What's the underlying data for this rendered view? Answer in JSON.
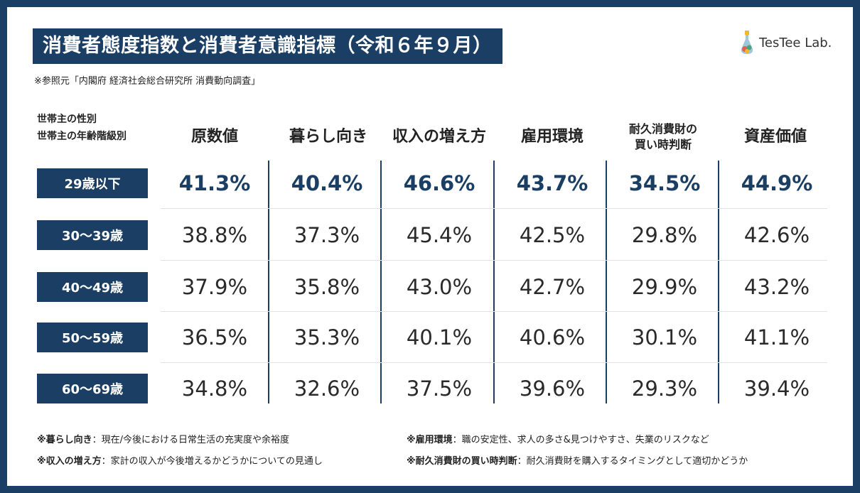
{
  "title": "消費者態度指数と消費者意識指標（令和６年９月）",
  "source": "※参照元「内閣府 経済社会総合研究所 消費動向調査」",
  "logo": {
    "name": "TesTee Lab."
  },
  "row_header": {
    "line1": "世帯主の性別",
    "line2": "世帯主の年齢階級別"
  },
  "columns": [
    {
      "label": "原数値"
    },
    {
      "label": "暮らし向き"
    },
    {
      "label": "収入の増え方"
    },
    {
      "label": "雇用環境"
    },
    {
      "label": "耐久消費財の買い時判断",
      "line1": "耐久消費財の",
      "line2": "買い時判断"
    },
    {
      "label": "資産価値"
    }
  ],
  "rows": [
    {
      "label": "29歳以下",
      "values": [
        "41.3%",
        "40.4%",
        "46.6%",
        "43.7%",
        "34.5%",
        "44.9%"
      ],
      "highlight": true
    },
    {
      "label": "30～39歳",
      "values": [
        "38.8%",
        "37.3%",
        "45.4%",
        "42.5%",
        "29.8%",
        "42.6%"
      ]
    },
    {
      "label": "40～49歳",
      "values": [
        "37.9%",
        "35.8%",
        "43.0%",
        "42.7%",
        "29.9%",
        "43.2%"
      ]
    },
    {
      "label": "50～59歳",
      "values": [
        "36.5%",
        "35.3%",
        "40.1%",
        "40.6%",
        "30.1%",
        "41.1%"
      ]
    },
    {
      "label": "60～69歳",
      "values": [
        "34.8%",
        "32.6%",
        "37.5%",
        "39.6%",
        "29.3%",
        "39.4%"
      ]
    }
  ],
  "notes": [
    {
      "term": "※暮らし向き",
      "desc": "：現在/今後における日常生活の充実度や余裕度"
    },
    {
      "term": "※雇用環境",
      "desc": "：職の安定性、求人の多さ&見つけやすさ、失業のリスクなど"
    },
    {
      "term": "※収入の増え方",
      "desc": "：家計の収入が今後増えるかどうかについての見通し"
    },
    {
      "term": "※耐久消費財の買い時判断",
      "desc": "：耐久消費財を購入するタイミングとして適切かどうか"
    }
  ],
  "colors": {
    "navy": "#1b3f64",
    "highlight_text": "#1b3f64"
  }
}
